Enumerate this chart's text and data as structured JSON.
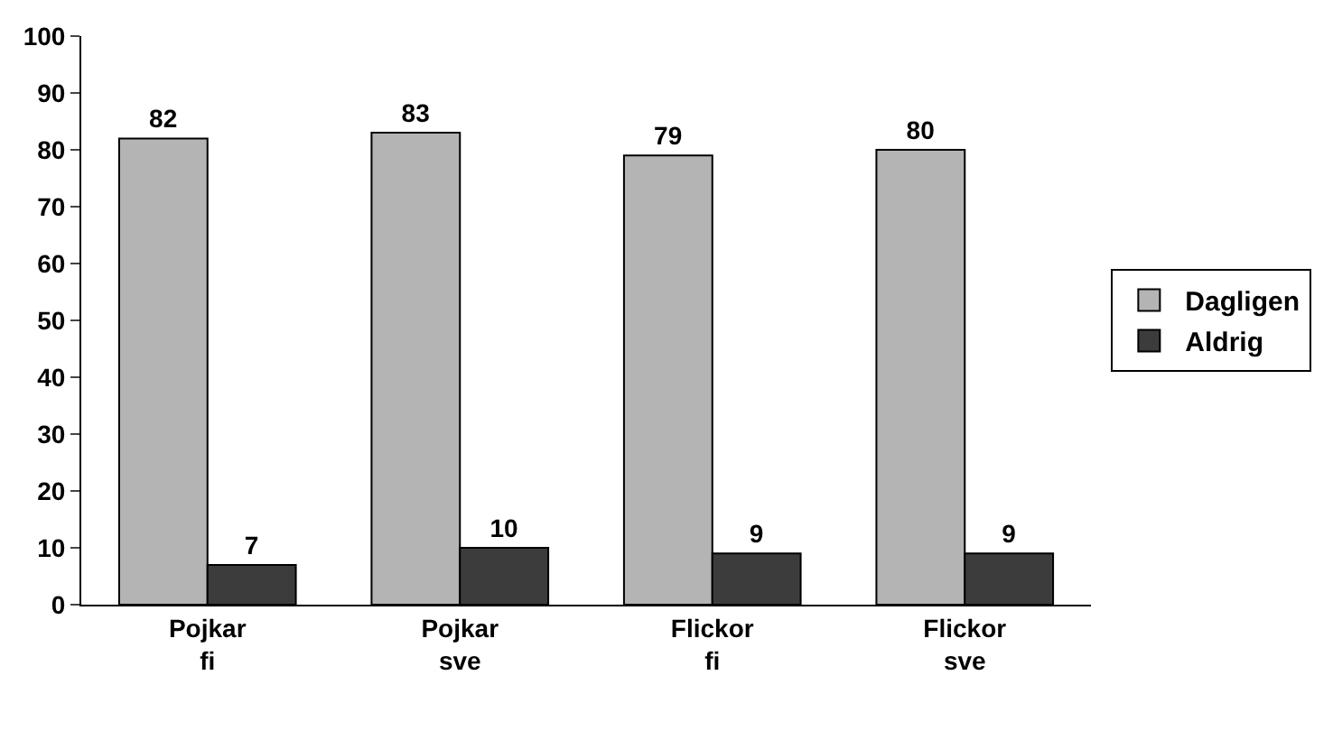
{
  "chart_data": {
    "type": "bar",
    "categories": [
      "Pojkar fi",
      "Pojkar sve",
      "Flickor fi",
      "Flickor sve"
    ],
    "series": [
      {
        "name": "Dagligen",
        "color": "#b4b4b4",
        "values": [
          82,
          83,
          79,
          80
        ]
      },
      {
        "name": "Aldrig",
        "color": "#3c3c3c",
        "values": [
          7,
          10,
          9,
          9
        ]
      }
    ],
    "ylim": [
      0,
      100
    ],
    "yticks": [
      0,
      10,
      20,
      30,
      40,
      50,
      60,
      70,
      80,
      90,
      100
    ],
    "grid": false,
    "legend": "right",
    "data_labels": true
  }
}
